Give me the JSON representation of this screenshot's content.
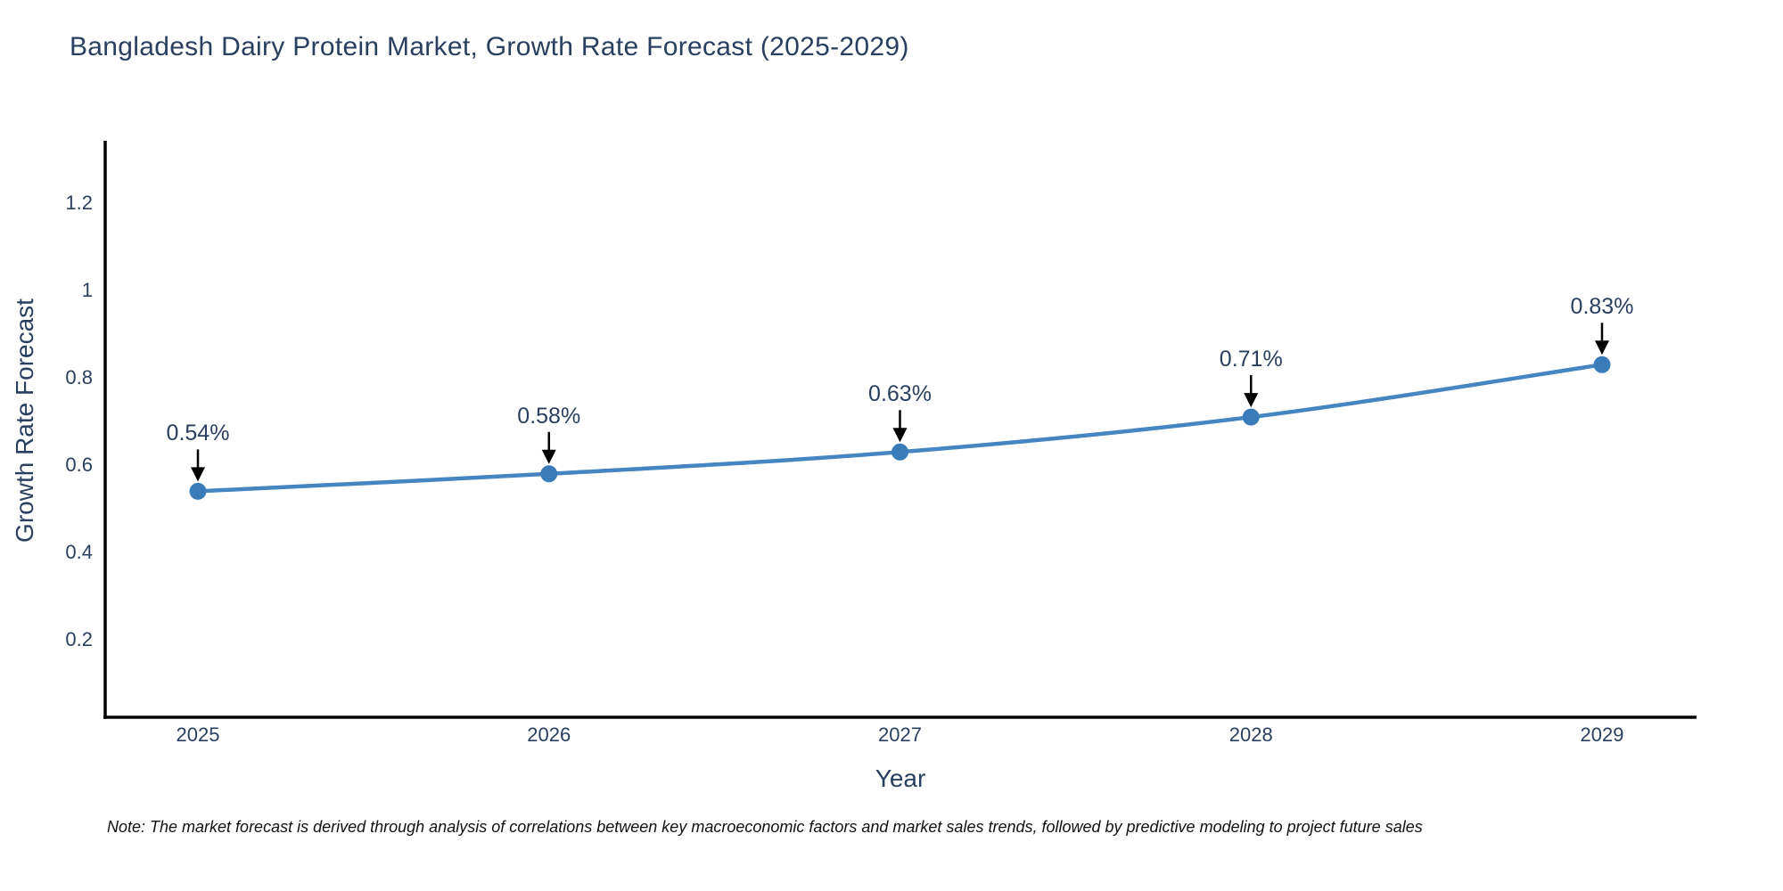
{
  "title": "Bangladesh Dairy Protein Market, Growth Rate Forecast (2025-2029)",
  "note": "Note: The market forecast is derived through analysis of correlations between key macroeconomic factors and market sales trends, followed by predictive modeling to project future sales",
  "chart_data": {
    "type": "line",
    "title": "Bangladesh Dairy Protein Market, Growth Rate Forecast (2025-2029)",
    "categories": [
      "2025",
      "2026",
      "2027",
      "2028",
      "2029"
    ],
    "series": [
      {
        "name": "Growth Rate Forecast",
        "values": [
          0.54,
          0.58,
          0.63,
          0.71,
          0.83
        ]
      }
    ],
    "point_labels": [
      "0.54%",
      "0.58%",
      "0.63%",
      "0.71%",
      "0.83%"
    ],
    "xlabel": "Year",
    "ylabel": "Growth Rate Forecast",
    "ylim": [
      0.02,
      1.34
    ],
    "yticks": [
      0.2,
      0.4,
      0.6,
      0.8,
      1,
      1.2
    ],
    "ytick_labels": [
      "0.2",
      "0.4",
      "0.6",
      "0.8",
      "1",
      "1.2"
    ],
    "grid": false,
    "legend": false,
    "line_style": "smooth",
    "annotation_style": "down-arrow"
  },
  "colors": {
    "background": "#ffffff",
    "title_text": "#2a3f5f",
    "tick_text": "#2a3f5f",
    "annotation_text": "#2a3f5f",
    "note_text": "#111111",
    "axis_line": "#000000",
    "arrow": "#000000",
    "line": "#4485c2",
    "marker": "#3a7cba"
  }
}
